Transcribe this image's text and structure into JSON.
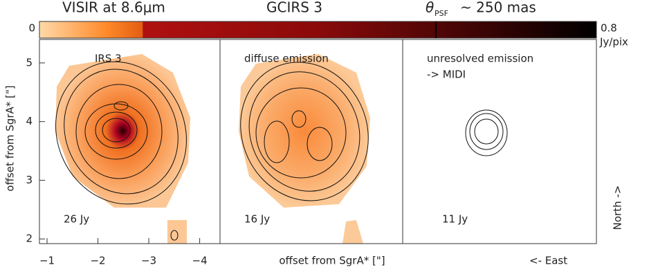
{
  "header": {
    "instrument": "VISIR at 8.6μm",
    "source": "GCIRS 3",
    "psf_symbol": "θ",
    "psf_sub": "PSF",
    "psf_value": "~ 250 mas"
  },
  "colorbar": {
    "lim": [
      0,
      0.8
    ],
    "ticks": [
      0,
      0.8
    ],
    "unit": "Jy/pix"
  },
  "ylabel": "offset from SgrA* [\"]",
  "xlabel": "offset from SgrA* [\"]",
  "north": "North ->",
  "east": "<- East",
  "chart_data": [
    {
      "type": "image",
      "title": "IRS 3",
      "flux": "26 Jy",
      "xlim": [
        -0.85,
        -4.4
      ],
      "xticks": [
        {
          "value": -1,
          "label": "−1"
        },
        {
          "value": -2,
          "label": "−2"
        },
        {
          "value": -3,
          "label": "−3"
        },
        {
          "value": -4,
          "label": "−4"
        }
      ],
      "ylim": [
        1.92,
        5.4
      ],
      "yticks": [
        2,
        3,
        4,
        5
      ]
    },
    {
      "type": "image",
      "title": "diffuse emission",
      "flux": "16 Jy"
    },
    {
      "type": "image",
      "title": "unresolved emission",
      "subtitle": "-> MIDI",
      "flux": "11 Jy"
    }
  ]
}
